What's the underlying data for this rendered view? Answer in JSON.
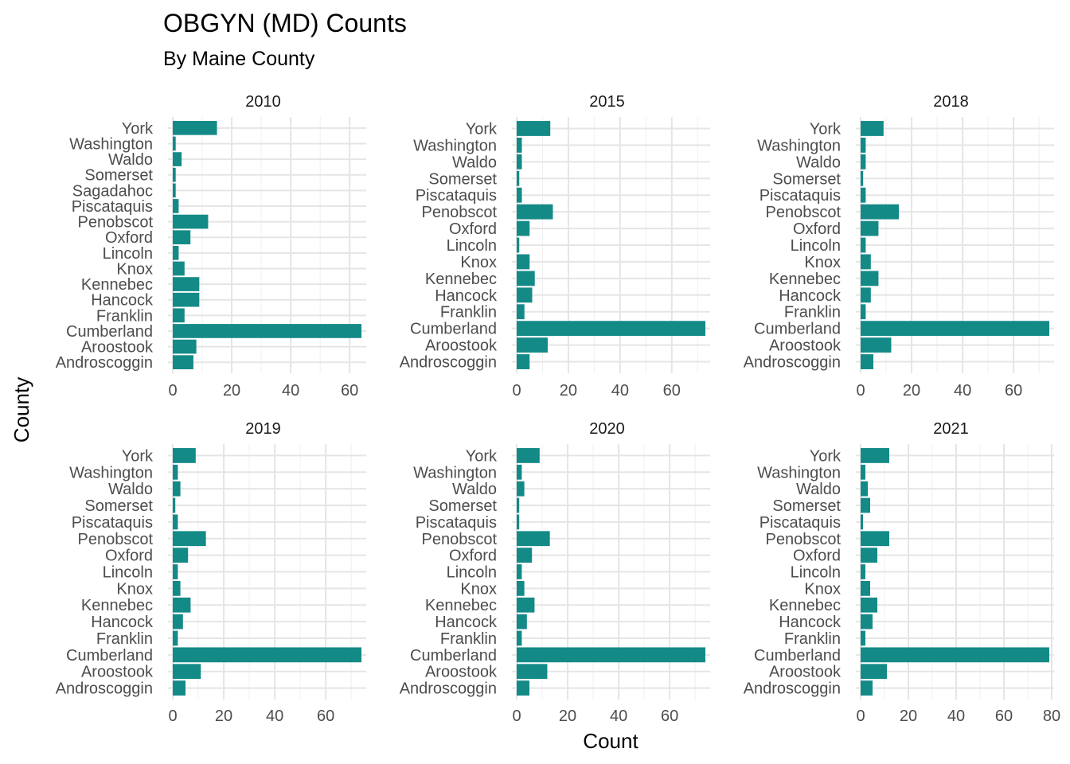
{
  "chart_data": {
    "type": "bar",
    "orientation": "horizontal",
    "title": "OBGYN (MD) Counts",
    "subtitle": "By Maine County",
    "xlabel": "Count",
    "ylabel": "County",
    "bar_color": "#148a87",
    "grid": true,
    "legend": "none",
    "panels": [
      {
        "name": "2010",
        "xlim": [
          0,
          64
        ],
        "xticks": [
          0,
          20,
          40,
          60
        ],
        "categories": [
          "Androscoggin",
          "Aroostook",
          "Cumberland",
          "Franklin",
          "Hancock",
          "Kennebec",
          "Knox",
          "Lincoln",
          "Oxford",
          "Penobscot",
          "Piscataquis",
          "Sagadahoc",
          "Somerset",
          "Waldo",
          "Washington",
          "York"
        ],
        "values": [
          7,
          8,
          64,
          4,
          9,
          9,
          4,
          2,
          6,
          12,
          2,
          1,
          1,
          3,
          1,
          15
        ]
      },
      {
        "name": "2015",
        "xlim": [
          0,
          73
        ],
        "xticks": [
          0,
          20,
          40,
          60
        ],
        "categories": [
          "Androscoggin",
          "Aroostook",
          "Cumberland",
          "Franklin",
          "Hancock",
          "Kennebec",
          "Knox",
          "Lincoln",
          "Oxford",
          "Penobscot",
          "Piscataquis",
          "Somerset",
          "Waldo",
          "Washington",
          "York"
        ],
        "values": [
          5,
          12,
          73,
          3,
          6,
          7,
          5,
          1,
          5,
          14,
          2,
          1,
          2,
          2,
          13
        ]
      },
      {
        "name": "2018",
        "xlim": [
          0,
          74
        ],
        "xticks": [
          0,
          20,
          40,
          60
        ],
        "categories": [
          "Androscoggin",
          "Aroostook",
          "Cumberland",
          "Franklin",
          "Hancock",
          "Kennebec",
          "Knox",
          "Lincoln",
          "Oxford",
          "Penobscot",
          "Piscataquis",
          "Somerset",
          "Waldo",
          "Washington",
          "York"
        ],
        "values": [
          5,
          12,
          74,
          2,
          4,
          7,
          4,
          2,
          7,
          15,
          2,
          1,
          2,
          2,
          9
        ]
      },
      {
        "name": "2019",
        "xlim": [
          0,
          74
        ],
        "xticks": [
          0,
          20,
          40,
          60
        ],
        "categories": [
          "Androscoggin",
          "Aroostook",
          "Cumberland",
          "Franklin",
          "Hancock",
          "Kennebec",
          "Knox",
          "Lincoln",
          "Oxford",
          "Penobscot",
          "Piscataquis",
          "Somerset",
          "Waldo",
          "Washington",
          "York"
        ],
        "values": [
          5,
          11,
          74,
          2,
          4,
          7,
          3,
          2,
          6,
          13,
          2,
          1,
          3,
          2,
          9
        ]
      },
      {
        "name": "2020",
        "xlim": [
          0,
          74
        ],
        "xticks": [
          0,
          20,
          40,
          60
        ],
        "categories": [
          "Androscoggin",
          "Aroostook",
          "Cumberland",
          "Franklin",
          "Hancock",
          "Kennebec",
          "Knox",
          "Lincoln",
          "Oxford",
          "Penobscot",
          "Piscataquis",
          "Somerset",
          "Waldo",
          "Washington",
          "York"
        ],
        "values": [
          5,
          12,
          74,
          2,
          4,
          7,
          3,
          2,
          6,
          13,
          1,
          1,
          3,
          2,
          9
        ]
      },
      {
        "name": "2021",
        "xlim": [
          0,
          79
        ],
        "xticks": [
          0,
          20,
          40,
          60,
          80
        ],
        "categories": [
          "Androscoggin",
          "Aroostook",
          "Cumberland",
          "Franklin",
          "Hancock",
          "Kennebec",
          "Knox",
          "Lincoln",
          "Oxford",
          "Penobscot",
          "Piscataquis",
          "Somerset",
          "Waldo",
          "Washington",
          "York"
        ],
        "values": [
          5,
          11,
          79,
          2,
          5,
          7,
          4,
          2,
          7,
          12,
          1,
          4,
          3,
          2,
          12
        ]
      }
    ]
  }
}
